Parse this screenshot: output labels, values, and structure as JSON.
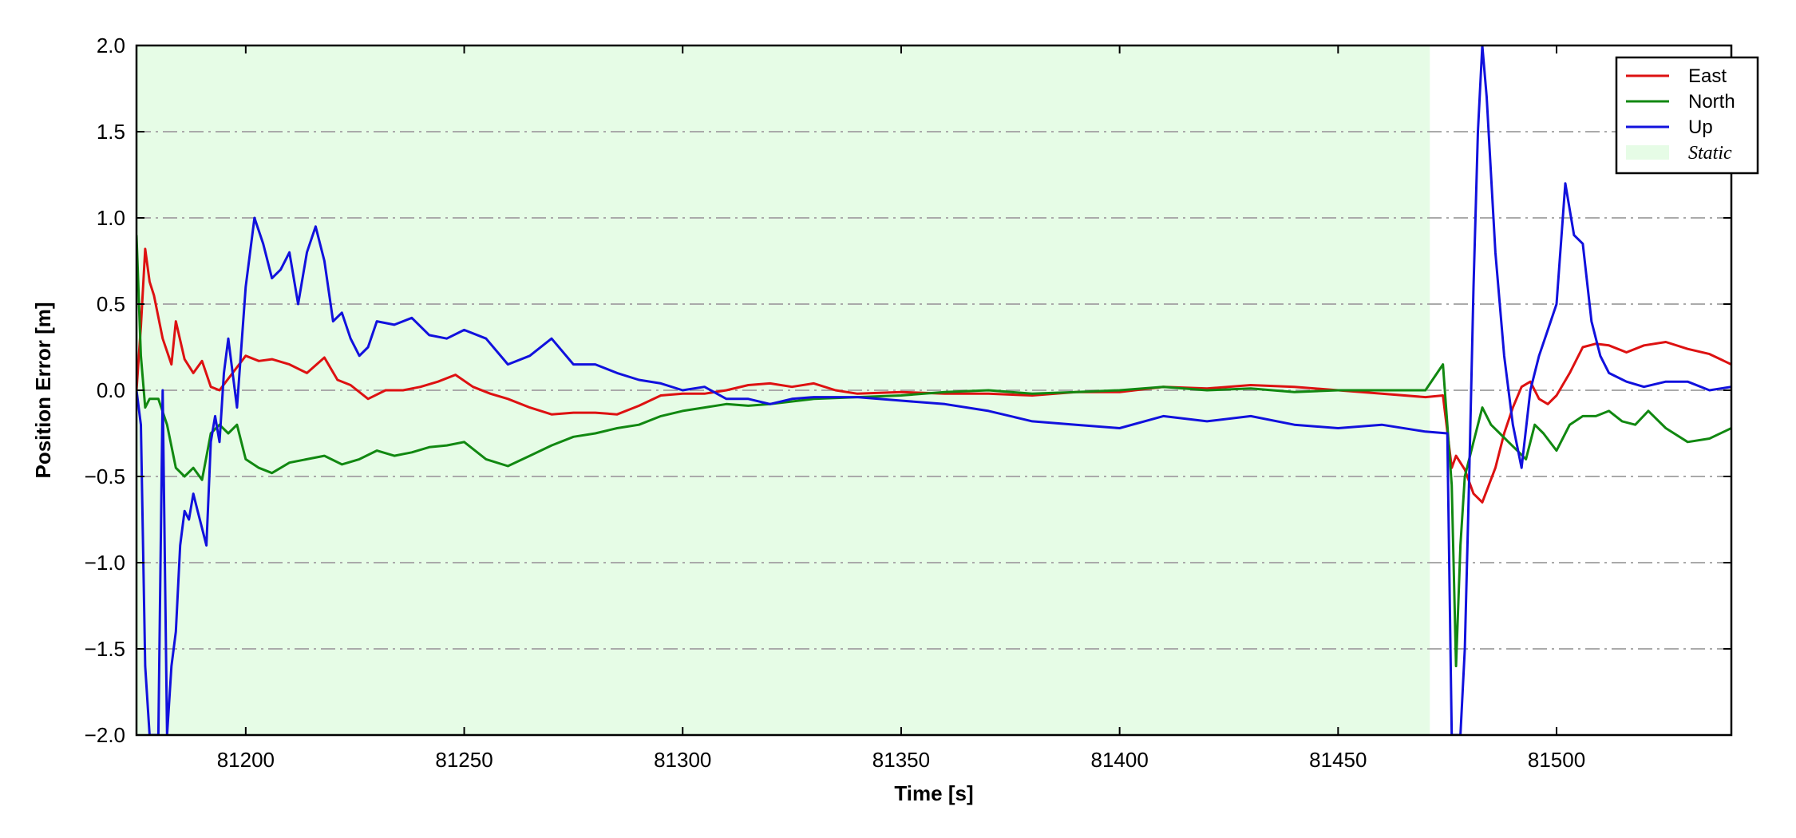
{
  "chart_data": {
    "type": "line",
    "title": "",
    "xlabel": "Time [s]",
    "ylabel": "Position Error [m]",
    "xlim": [
      81175,
      81540
    ],
    "ylim": [
      -2.0,
      2.0
    ],
    "xticks": [
      81200,
      81250,
      81300,
      81350,
      81400,
      81450,
      81500
    ],
    "xtick_labels": [
      "81200",
      "81250",
      "81300",
      "81350",
      "81400",
      "81450",
      "81500"
    ],
    "yticks": [
      2.0,
      1.5,
      1.0,
      0.5,
      0.0,
      -0.5,
      -1.0,
      -1.5,
      -2.0
    ],
    "ytick_labels": [
      "2.0",
      "1.5",
      "1.0",
      "0.5",
      "0.0",
      "−0.5",
      "−1.0",
      "−1.5",
      "−2.0"
    ],
    "grid": "horizontal dash-dot gray",
    "legend_position": "top-right",
    "static_region": {
      "label": "Static",
      "x_start": 81175,
      "x_end": 81471,
      "color": "#e6fce6"
    },
    "series": [
      {
        "name": "East",
        "color": "#dd1111",
        "x": [
          81175,
          81176,
          81177,
          81178,
          81179,
          81181,
          81183,
          81184,
          81186,
          81188,
          81190,
          81192,
          81194,
          81197,
          81200,
          81203,
          81206,
          81210,
          81214,
          81218,
          81221,
          81224,
          81228,
          81232,
          81236,
          81240,
          81244,
          81248,
          81252,
          81256,
          81260,
          81265,
          81270,
          81275,
          81280,
          81285,
          81290,
          81295,
          81300,
          81305,
          81310,
          81315,
          81320,
          81325,
          81330,
          81335,
          81340,
          81350,
          81360,
          81370,
          81380,
          81390,
          81400,
          81410,
          81420,
          81430,
          81440,
          81450,
          81460,
          81470,
          81474,
          81476,
          81477,
          81479,
          81481,
          81483,
          81486,
          81488,
          81490,
          81492,
          81494,
          81496,
          81498,
          81500,
          81503,
          81506,
          81509,
          81512,
          81516,
          81520,
          81525,
          81530,
          81535,
          81540
        ],
        "y": [
          0.0,
          0.37,
          0.82,
          0.63,
          0.55,
          0.3,
          0.15,
          0.4,
          0.18,
          0.1,
          0.17,
          0.02,
          0.0,
          0.1,
          0.2,
          0.17,
          0.18,
          0.15,
          0.1,
          0.19,
          0.06,
          0.03,
          -0.05,
          0.0,
          0.0,
          0.02,
          0.05,
          0.09,
          0.02,
          -0.02,
          -0.05,
          -0.1,
          -0.14,
          -0.13,
          -0.13,
          -0.14,
          -0.09,
          -0.03,
          -0.02,
          -0.02,
          0.0,
          0.03,
          0.04,
          0.02,
          0.04,
          0.0,
          -0.02,
          -0.01,
          -0.02,
          -0.02,
          -0.03,
          -0.01,
          -0.01,
          0.02,
          0.01,
          0.03,
          0.02,
          0.0,
          -0.02,
          -0.04,
          -0.03,
          -0.45,
          -0.38,
          -0.46,
          -0.6,
          -0.65,
          -0.45,
          -0.25,
          -0.1,
          0.02,
          0.05,
          -0.05,
          -0.08,
          -0.03,
          0.1,
          0.25,
          0.27,
          0.26,
          0.22,
          0.26,
          0.28,
          0.24,
          0.21,
          0.15
        ]
      },
      {
        "name": "North",
        "color": "#118811",
        "x": [
          81175,
          81176,
          81177,
          81178,
          81180,
          81182,
          81184,
          81186,
          81188,
          81190,
          81192,
          81194,
          81196,
          81198,
          81200,
          81203,
          81206,
          81210,
          81214,
          81218,
          81222,
          81226,
          81230,
          81234,
          81238,
          81242,
          81246,
          81250,
          81255,
          81260,
          81265,
          81270,
          81275,
          81280,
          81285,
          81290,
          81295,
          81300,
          81305,
          81310,
          81315,
          81320,
          81330,
          81340,
          81350,
          81360,
          81370,
          81380,
          81390,
          81400,
          81410,
          81420,
          81430,
          81440,
          81450,
          81460,
          81470,
          81474,
          81476,
          81477,
          81478,
          81479,
          81481,
          81483,
          81485,
          81487,
          81489,
          81491,
          81493,
          81495,
          81497,
          81500,
          81503,
          81506,
          81509,
          81512,
          81515,
          81518,
          81521,
          81525,
          81530,
          81535,
          81540
        ],
        "y": [
          0.9,
          0.2,
          -0.1,
          -0.05,
          -0.05,
          -0.2,
          -0.45,
          -0.5,
          -0.45,
          -0.52,
          -0.25,
          -0.2,
          -0.25,
          -0.2,
          -0.4,
          -0.45,
          -0.48,
          -0.42,
          -0.4,
          -0.38,
          -0.43,
          -0.4,
          -0.35,
          -0.38,
          -0.36,
          -0.33,
          -0.32,
          -0.3,
          -0.4,
          -0.44,
          -0.38,
          -0.32,
          -0.27,
          -0.25,
          -0.22,
          -0.2,
          -0.15,
          -0.12,
          -0.1,
          -0.08,
          -0.09,
          -0.08,
          -0.05,
          -0.04,
          -0.03,
          -0.01,
          0.0,
          -0.02,
          -0.01,
          0.0,
          0.02,
          0.0,
          0.01,
          -0.01,
          0.0,
          0.0,
          0.0,
          0.15,
          -0.55,
          -1.6,
          -0.9,
          -0.5,
          -0.3,
          -0.1,
          -0.2,
          -0.25,
          -0.3,
          -0.35,
          -0.4,
          -0.2,
          -0.25,
          -0.35,
          -0.2,
          -0.15,
          -0.15,
          -0.12,
          -0.18,
          -0.2,
          -0.12,
          -0.22,
          -0.3,
          -0.28,
          -0.22
        ]
      },
      {
        "name": "Up",
        "color": "#1111dd",
        "x": [
          81175,
          81176,
          81177,
          81178,
          81180,
          81181,
          81182,
          81183,
          81184,
          81185,
          81186,
          81187,
          81188,
          81189,
          81190,
          81191,
          81192,
          81193,
          81194,
          81195,
          81196,
          81198,
          81200,
          81202,
          81204,
          81206,
          81208,
          81210,
          81212,
          81214,
          81216,
          81218,
          81220,
          81222,
          81224,
          81226,
          81228,
          81230,
          81234,
          81238,
          81242,
          81246,
          81250,
          81255,
          81260,
          81265,
          81270,
          81275,
          81280,
          81285,
          81290,
          81295,
          81300,
          81305,
          81310,
          81315,
          81320,
          81325,
          81330,
          81340,
          81350,
          81360,
          81370,
          81380,
          81390,
          81400,
          81410,
          81420,
          81430,
          81440,
          81450,
          81460,
          81470,
          81475,
          81476,
          81477,
          81478,
          81479,
          81480,
          81481,
          81482,
          81483,
          81484,
          81486,
          81488,
          81490,
          81492,
          81494,
          81496,
          81498,
          81500,
          81502,
          81504,
          81506,
          81508,
          81510,
          81512,
          81516,
          81520,
          81525,
          81530,
          81535,
          81540
        ],
        "y": [
          0.0,
          -0.2,
          -1.6,
          -2.0,
          -2.0,
          0.0,
          -2.0,
          -1.6,
          -1.4,
          -0.9,
          -0.7,
          -0.75,
          -0.6,
          -0.7,
          -0.8,
          -0.9,
          -0.3,
          -0.15,
          -0.3,
          0.1,
          0.3,
          -0.1,
          0.6,
          1.0,
          0.85,
          0.65,
          0.7,
          0.8,
          0.5,
          0.8,
          0.95,
          0.75,
          0.4,
          0.45,
          0.3,
          0.2,
          0.25,
          0.4,
          0.38,
          0.42,
          0.32,
          0.3,
          0.35,
          0.3,
          0.15,
          0.2,
          0.3,
          0.15,
          0.15,
          0.1,
          0.06,
          0.04,
          0.0,
          0.02,
          -0.05,
          -0.05,
          -0.08,
          -0.05,
          -0.04,
          -0.04,
          -0.06,
          -0.08,
          -0.12,
          -0.18,
          -0.2,
          -0.22,
          -0.15,
          -0.18,
          -0.15,
          -0.2,
          -0.22,
          -0.2,
          -0.24,
          -0.25,
          -2.0,
          -2.0,
          -2.0,
          -1.5,
          -0.5,
          0.6,
          1.5,
          2.0,
          1.7,
          0.8,
          0.2,
          -0.2,
          -0.45,
          0.0,
          0.2,
          0.35,
          0.5,
          1.2,
          0.9,
          0.85,
          0.4,
          0.2,
          0.1,
          0.05,
          0.02,
          0.05,
          0.05,
          0.0,
          0.02
        ]
      }
    ]
  },
  "legend": {
    "items": [
      {
        "label": "East",
        "color": "#dd1111",
        "kind": "line"
      },
      {
        "label": "North",
        "color": "#118811",
        "kind": "line"
      },
      {
        "label": "Up",
        "color": "#1111dd",
        "kind": "line"
      },
      {
        "label": "Static",
        "color": "#e6fce6",
        "kind": "patch"
      }
    ]
  }
}
